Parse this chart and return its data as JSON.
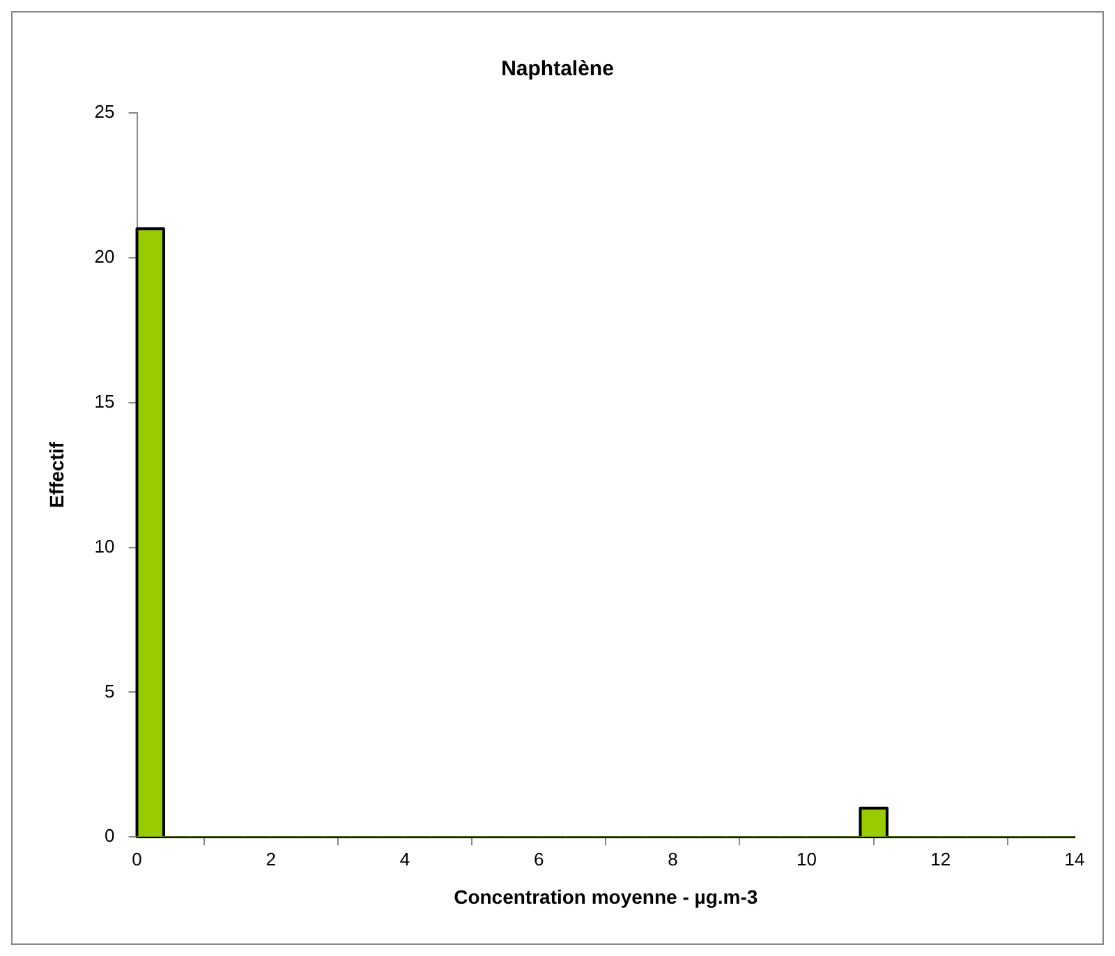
{
  "chart_data": {
    "type": "histogram",
    "title": "Naphtalène",
    "xlabel": "Concentration moyenne - µg.m-3",
    "ylabel": "Effectif",
    "bins": [
      0,
      0.4,
      0.8,
      1.2,
      1.6,
      2,
      2.4,
      2.8,
      3.2,
      3.6,
      4,
      4.4,
      4.8,
      5.2,
      5.6,
      6,
      6.4,
      6.8,
      7.2,
      7.6,
      8,
      8.4,
      8.8,
      9.2,
      9.6,
      10,
      10.4,
      10.8,
      11.2,
      11.6,
      12,
      12.4,
      12.8,
      13.2,
      13.6,
      14
    ],
    "values": [
      21,
      0,
      0,
      0,
      0,
      0,
      0,
      0,
      0,
      0,
      0,
      0,
      0,
      0,
      0,
      0,
      0,
      0,
      0,
      0,
      0,
      0,
      0,
      0,
      0,
      0,
      0,
      1,
      0,
      0,
      0,
      0,
      0,
      0,
      0
    ],
    "color": "#99cc00",
    "xlim": [
      0,
      14
    ],
    "xticks": [
      0,
      2,
      4,
      6,
      8,
      10,
      12,
      14
    ],
    "ylim": [
      0,
      25
    ],
    "yticks": [
      0,
      5,
      10,
      15,
      20,
      25
    ],
    "grid": false,
    "legend": false
  }
}
